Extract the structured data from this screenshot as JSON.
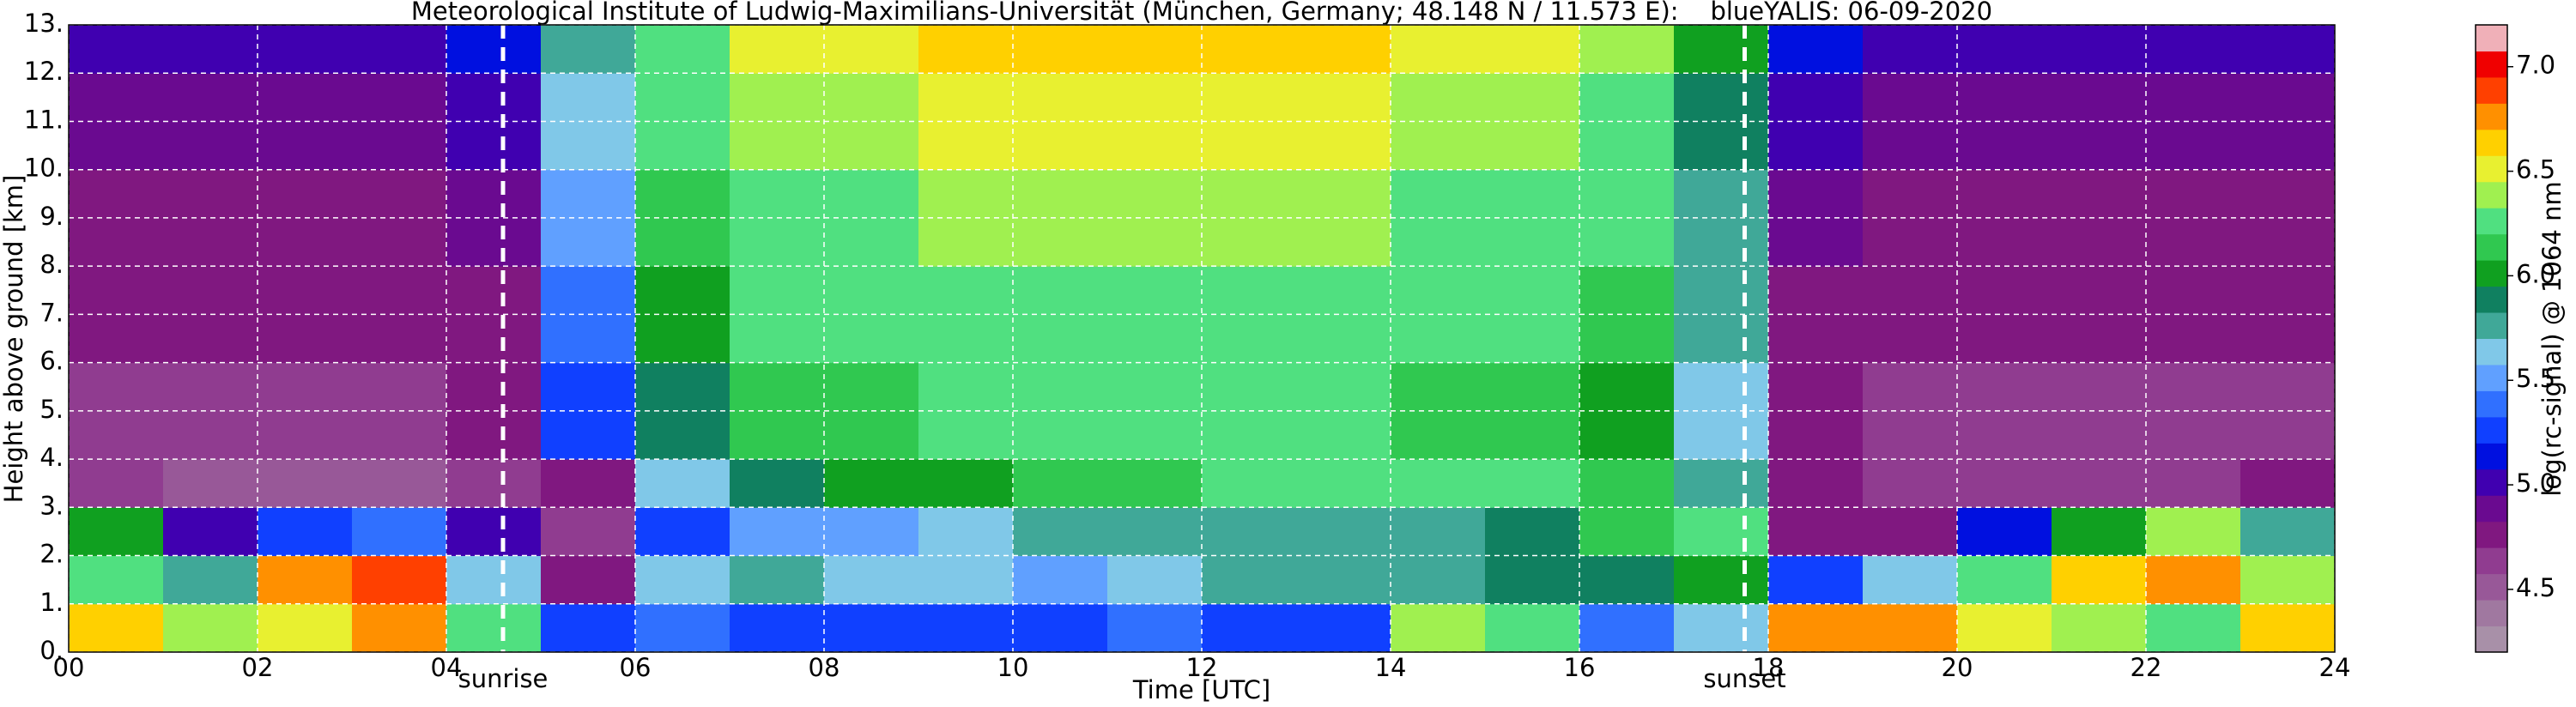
{
  "chart_data": {
    "type": "heatmap",
    "title": "Meteorological Institute of Ludwig-Maximilians-Universität (München, Germany; 48.148 N / 11.573 E):    blueYALIS: 06-09-2020",
    "xlabel": "Time [UTC]",
    "ylabel": "Height above ground [km]",
    "xlim": [
      0,
      24
    ],
    "ylim": [
      0,
      13
    ],
    "xticks": [
      {
        "value": 0,
        "label": "00"
      },
      {
        "value": 2,
        "label": "02"
      },
      {
        "value": 4,
        "label": "04"
      },
      {
        "value": 6,
        "label": "06"
      },
      {
        "value": 8,
        "label": "08"
      },
      10,
      12,
      14,
      16,
      18,
      20,
      22,
      24
    ],
    "yticks": [
      {
        "value": 0,
        "label": "0."
      },
      {
        "value": 1,
        "label": "1."
      },
      {
        "value": 2,
        "label": "2."
      },
      {
        "value": 3,
        "label": "3."
      },
      {
        "value": 4,
        "label": "4."
      },
      {
        "value": 5,
        "label": "5."
      },
      {
        "value": 6,
        "label": "6."
      },
      {
        "value": 7,
        "label": "7."
      },
      {
        "value": 8,
        "label": "8."
      },
      {
        "value": 9,
        "label": "9."
      },
      {
        "value": 10,
        "label": "10."
      },
      {
        "value": 11,
        "label": "11."
      },
      {
        "value": 12,
        "label": "12."
      },
      {
        "value": 13,
        "label": "13."
      }
    ],
    "grid": true,
    "annotations": [
      {
        "text": "sunrise",
        "x": 4.6
      },
      {
        "text": "sunset",
        "x": 17.75
      }
    ],
    "xbins": [
      0,
      1,
      2,
      3,
      4,
      5,
      6,
      7,
      8,
      9,
      10,
      11,
      12,
      13,
      14,
      15,
      16,
      17,
      18,
      19,
      20,
      21,
      22,
      23,
      24
    ],
    "ybins": [
      0,
      1,
      2,
      3,
      4,
      5,
      6,
      7,
      8,
      9,
      10,
      11,
      12,
      13
    ],
    "z": [
      [
        6.6,
        6.4,
        6.5,
        6.8,
        6.2,
        5.3,
        5.4,
        5.3,
        5.3,
        5.2,
        5.2,
        5.4,
        5.3,
        5.3,
        6.4,
        6.2,
        5.4,
        5.6,
        6.7,
        6.8,
        6.5,
        6.4,
        6.3,
        6.6
      ],
      [
        6.3,
        5.8,
        6.7,
        6.9,
        5.6,
        4.8,
        5.6,
        5.7,
        5.6,
        5.6,
        5.5,
        5.6,
        5.8,
        5.7,
        5.8,
        5.9,
        5.9,
        6.0,
        5.2,
        5.6,
        6.3,
        6.6,
        6.7,
        6.4
      ],
      [
        6.0,
        5.0,
        5.2,
        5.4,
        5.0,
        4.6,
        5.3,
        5.5,
        5.5,
        5.6,
        5.7,
        5.7,
        5.7,
        5.8,
        5.8,
        5.9,
        6.1,
        6.3,
        4.7,
        4.7,
        5.1,
        6.0,
        6.4,
        5.8
      ],
      [
        4.6,
        4.5,
        4.5,
        4.5,
        4.6,
        4.7,
        5.6,
        5.9,
        6.0,
        6.0,
        6.1,
        6.1,
        6.2,
        6.2,
        6.2,
        6.2,
        6.1,
        5.8,
        4.7,
        4.6,
        4.6,
        4.6,
        4.6,
        4.8
      ],
      [
        4.6,
        4.6,
        4.6,
        4.6,
        4.7,
        5.3,
        5.9,
        6.1,
        6.1,
        6.2,
        6.2,
        6.2,
        6.2,
        6.2,
        6.1,
        6.1,
        6.0,
        5.6,
        4.7,
        4.6,
        4.6,
        4.6,
        4.6,
        4.6
      ],
      [
        4.6,
        4.6,
        4.6,
        4.6,
        4.7,
        5.3,
        5.9,
        6.1,
        6.1,
        6.2,
        6.2,
        6.2,
        6.2,
        6.2,
        6.1,
        6.1,
        6.0,
        5.6,
        4.7,
        4.6,
        4.6,
        4.6,
        4.6,
        4.6
      ],
      [
        4.7,
        4.7,
        4.7,
        4.7,
        4.8,
        5.4,
        6.0,
        6.2,
        6.2,
        6.3,
        6.3,
        6.3,
        6.3,
        6.3,
        6.2,
        6.2,
        6.1,
        5.7,
        4.8,
        4.7,
        4.7,
        4.7,
        4.7,
        4.7
      ],
      [
        4.7,
        4.7,
        4.7,
        4.7,
        4.8,
        5.4,
        6.0,
        6.2,
        6.2,
        6.3,
        6.3,
        6.3,
        6.3,
        6.3,
        6.2,
        6.2,
        6.1,
        5.7,
        4.8,
        4.7,
        4.7,
        4.7,
        4.7,
        4.7
      ],
      [
        4.8,
        4.8,
        4.8,
        4.8,
        4.9,
        5.5,
        6.1,
        6.3,
        6.3,
        6.4,
        6.4,
        6.4,
        6.4,
        6.4,
        6.3,
        6.3,
        6.2,
        5.8,
        4.9,
        4.8,
        4.8,
        4.8,
        4.8,
        4.8
      ],
      [
        4.8,
        4.8,
        4.8,
        4.8,
        4.9,
        5.5,
        6.1,
        6.3,
        6.3,
        6.4,
        6.4,
        6.4,
        6.4,
        6.4,
        6.3,
        6.3,
        6.2,
        5.8,
        4.9,
        4.8,
        4.8,
        4.8,
        4.8,
        4.8
      ],
      [
        4.9,
        4.9,
        4.9,
        4.9,
        5.0,
        5.6,
        6.2,
        6.4,
        6.4,
        6.5,
        6.5,
        6.5,
        6.5,
        6.5,
        6.4,
        6.4,
        6.3,
        5.9,
        5.0,
        4.9,
        4.9,
        4.9,
        4.9,
        4.9
      ],
      [
        4.9,
        4.9,
        4.9,
        4.9,
        5.0,
        5.6,
        6.2,
        6.4,
        6.4,
        6.5,
        6.5,
        6.5,
        6.5,
        6.5,
        6.4,
        6.4,
        6.3,
        5.9,
        5.0,
        4.9,
        4.9,
        4.9,
        4.9,
        4.9
      ],
      [
        5.0,
        5.0,
        5.0,
        5.0,
        5.1,
        5.7,
        6.3,
        6.5,
        6.5,
        6.6,
        6.6,
        6.6,
        6.6,
        6.6,
        6.5,
        6.5,
        6.4,
        6.0,
        5.1,
        5.0,
        5.0,
        5.0,
        5.0,
        5.0
      ]
    ],
    "colorbar": {
      "label": "log(rc-signal) @ 1064 nm",
      "lim": [
        4.2,
        7.2
      ],
      "ticks": [
        4.5,
        {
          "value": 5,
          "label": "5.0"
        },
        5.5,
        {
          "value": 6,
          "label": "6.0"
        },
        6.5,
        {
          "value": 7,
          "label": "7.0"
        }
      ],
      "colors": [
        "#a890a8",
        "#a078a0",
        "#985898",
        "#903c90",
        "#801880",
        "#6a0a90",
        "#4000b0",
        "#0010e0",
        "#1040ff",
        "#3070ff",
        "#60a0ff",
        "#80c8e8",
        "#40a898",
        "#108060",
        "#10a020",
        "#30c850",
        "#50e080",
        "#a0f050",
        "#e8f030",
        "#ffd000",
        "#ff9000",
        "#ff4000",
        "#f00000",
        "#f0b0b8"
      ]
    }
  }
}
